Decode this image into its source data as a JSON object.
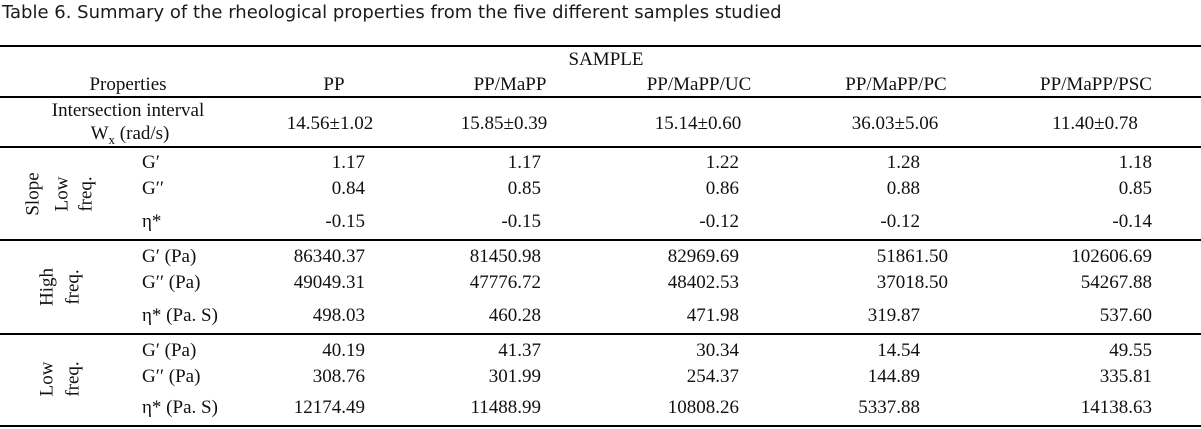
{
  "caption": "Table 6. Summary of the rheological properties from the five different samples studied",
  "header": {
    "group": "SAMPLE",
    "properties": "Properties",
    "samples": [
      "PP",
      "PP/MaPP",
      "PP/MaPP/UC",
      "PP/MaPP/PC",
      "PP/MaPP/PSC"
    ]
  },
  "intersection": {
    "label_line1": "Intersection interval",
    "label_line2_main": "W",
    "label_line2_sub": "x",
    "label_line2_unit": " (rad/s)",
    "values": [
      "14.56±1.02",
      "15.85±0.39",
      "15.14±0.60",
      "36.03±5.06",
      "11.40±0.78"
    ]
  },
  "sections": [
    {
      "group_label_1": "Slope",
      "group_label_2": "Low",
      "group_label_3": "freq.",
      "rows": [
        {
          "property": "G′",
          "values": [
            "1.17",
            "1.17",
            "1.22",
            "1.28",
            "1.18"
          ]
        },
        {
          "property": "G′′",
          "values": [
            "0.84",
            "0.85",
            "0.86",
            "0.88",
            "0.85"
          ]
        },
        {
          "property": "η*",
          "values": [
            "-0.15",
            "-0.15",
            "-0.12",
            "-0.12",
            "-0.14"
          ]
        }
      ]
    },
    {
      "group_label_1": "High",
      "group_label_2": "freq.",
      "rows": [
        {
          "property": "G′ (Pa)",
          "values": [
            "86340.37",
            "81450.98",
            "82969.69",
            "51861.50",
            "102606.69"
          ]
        },
        {
          "property": "G′′ (Pa)",
          "values": [
            "49049.31",
            "47776.72",
            "48402.53",
            "37018.50",
            "54267.88"
          ]
        },
        {
          "property": "η* (Pa. S)",
          "values": [
            "498.03",
            "460.28",
            "471.98",
            "319.87",
            "537.60"
          ]
        }
      ]
    },
    {
      "group_label_1": "Low",
      "group_label_2": "freq.",
      "rows": [
        {
          "property": "G′ (Pa)",
          "values": [
            "40.19",
            "41.37",
            "30.34",
            "14.54",
            "49.55"
          ]
        },
        {
          "property": "G′′ (Pa)",
          "values": [
            "308.76",
            "301.99",
            "254.37",
            "144.89",
            "335.81"
          ]
        },
        {
          "property": "η* (Pa. S)",
          "values": [
            "12174.49",
            "11488.99",
            "10808.26",
            "5337.88",
            "14138.63"
          ]
        }
      ]
    }
  ]
}
